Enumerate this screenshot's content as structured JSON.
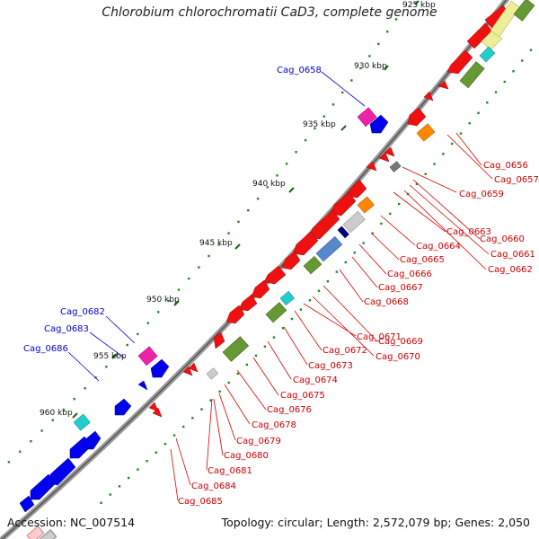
{
  "title": "Chlorobium chlorochromatii CaD3, complete genome",
  "footer": {
    "accession": "Accession: NC_007514",
    "summary": "Topology: circular; Length: 2,572,079 bp; Genes: 2,050"
  },
  "kbp_ticks": [
    "925 kbp",
    "930 kbp",
    "935 kbp",
    "940 kbp",
    "945 kbp",
    "950 kbp",
    "955 kbp",
    "960 kbp"
  ],
  "labels_left": [
    "Cag_0658",
    "Cag_0682",
    "Cag_0683",
    "Cag_0686"
  ],
  "labels_right": [
    "Cag_0656",
    "Cag_0657",
    "Cag_0659",
    "Cag_0660",
    "Cag_0661",
    "Cag_0662",
    "Cag_0663",
    "Cag_0664",
    "Cag_0665",
    "Cag_0666",
    "Cag_0667",
    "Cag_0668",
    "Cag_0669",
    "Cag_0670",
    "Cag_0671",
    "Cag_0672",
    "Cag_0673",
    "Cag_0674",
    "Cag_0675",
    "Cag_0676",
    "Cag_0678",
    "Cag_0679",
    "Cag_0680",
    "Cag_0681",
    "Cag_0684",
    "Cag_0685"
  ],
  "colors": {
    "backbone": "#808080",
    "left_label": "#0000cc",
    "right_label": "#cc0000",
    "forward_gene": "#0000ee",
    "reverse_gene": "#ee0000",
    "gc_dot": "#229922"
  }
}
